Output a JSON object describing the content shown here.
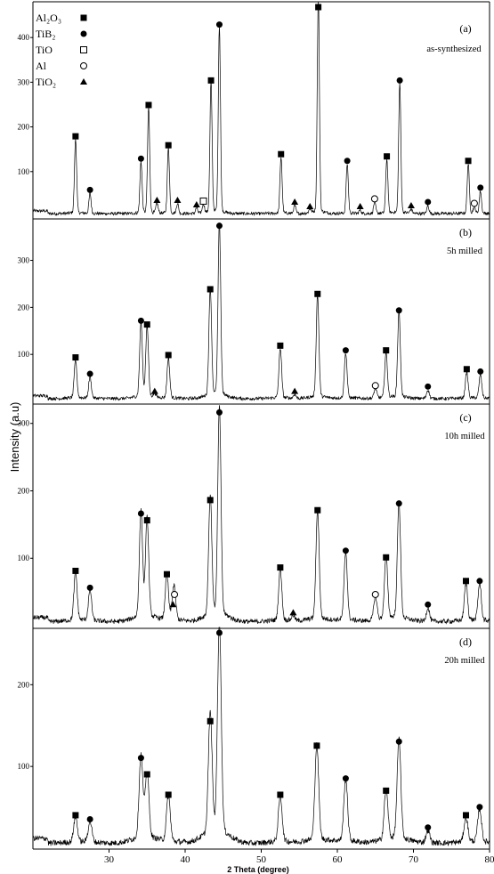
{
  "chart_data": {
    "type": "line",
    "xlabel": "2 Theta (degree)",
    "ylabel": "Intensity (a.u)",
    "x_ticks": [
      30,
      40,
      50,
      60,
      70,
      80
    ],
    "xlim": [
      20,
      80
    ],
    "grid": false,
    "legend_position": "top-left",
    "legend": [
      {
        "label": "Al₂O₃",
        "marker": "filled-square"
      },
      {
        "label": "TiB₂",
        "marker": "filled-circle"
      },
      {
        "label": "TiO",
        "marker": "open-square"
      },
      {
        "label": "Al",
        "marker": "open-circle"
      },
      {
        "label": "TiO₂",
        "marker": "filled-triangle"
      }
    ],
    "panels": [
      {
        "id": "a",
        "tag": "(a)",
        "label": "as-synthesized",
        "y_ticks": [
          100,
          200,
          300,
          400
        ],
        "ylim": [
          0,
          480
        ],
        "peaks": [
          {
            "x": 25.6,
            "y": 165,
            "phase": "Al2O3"
          },
          {
            "x": 27.5,
            "y": 45,
            "phase": "TiB2"
          },
          {
            "x": 34.2,
            "y": 115,
            "phase": "TiB2"
          },
          {
            "x": 35.2,
            "y": 235,
            "phase": "Al2O3"
          },
          {
            "x": 36.3,
            "y": 22,
            "phase": "TiO2"
          },
          {
            "x": 37.8,
            "y": 145,
            "phase": "Al2O3"
          },
          {
            "x": 39.0,
            "y": 22,
            "phase": "TiO2"
          },
          {
            "x": 41.5,
            "y": 12,
            "phase": "TiO2"
          },
          {
            "x": 42.4,
            "y": 20,
            "phase": "TiO"
          },
          {
            "x": 43.4,
            "y": 290,
            "phase": "Al2O3"
          },
          {
            "x": 44.5,
            "y": 415,
            "phase": "TiB2"
          },
          {
            "x": 52.6,
            "y": 125,
            "phase": "Al2O3"
          },
          {
            "x": 54.4,
            "y": 18,
            "phase": "TiO2"
          },
          {
            "x": 56.4,
            "y": 8,
            "phase": "TiO2"
          },
          {
            "x": 57.5,
            "y": 480,
            "phase": "Al2O3"
          },
          {
            "x": 61.3,
            "y": 110,
            "phase": "TiB2"
          },
          {
            "x": 63.0,
            "y": 8,
            "phase": "TiO2"
          },
          {
            "x": 64.9,
            "y": 25,
            "phase": "Al"
          },
          {
            "x": 66.5,
            "y": 120,
            "phase": "Al2O3"
          },
          {
            "x": 68.2,
            "y": 290,
            "phase": "TiB2"
          },
          {
            "x": 69.7,
            "y": 10,
            "phase": "TiO2"
          },
          {
            "x": 71.9,
            "y": 18,
            "phase": "TiB2"
          },
          {
            "x": 77.2,
            "y": 110,
            "phase": "Al2O3"
          },
          {
            "x": 78.0,
            "y": 15,
            "phase": "Al"
          },
          {
            "x": 78.8,
            "y": 50,
            "phase": "TiB2"
          }
        ]
      },
      {
        "id": "b",
        "tag": "(b)",
        "label": "5h milled",
        "y_ticks": [
          100,
          200,
          300
        ],
        "ylim": [
          0,
          390
        ],
        "peaks": [
          {
            "x": 25.6,
            "y": 80,
            "phase": "Al2O3"
          },
          {
            "x": 27.5,
            "y": 45,
            "phase": "TiB2"
          },
          {
            "x": 34.2,
            "y": 158,
            "phase": "TiB2"
          },
          {
            "x": 35.0,
            "y": 150,
            "phase": "Al2O3"
          },
          {
            "x": 36.0,
            "y": 8,
            "phase": "TiO2"
          },
          {
            "x": 37.8,
            "y": 85,
            "phase": "Al2O3"
          },
          {
            "x": 43.3,
            "y": 225,
            "phase": "Al2O3"
          },
          {
            "x": 44.5,
            "y": 360,
            "phase": "TiB2"
          },
          {
            "x": 52.5,
            "y": 105,
            "phase": "Al2O3"
          },
          {
            "x": 54.4,
            "y": 8,
            "phase": "TiO2"
          },
          {
            "x": 57.4,
            "y": 215,
            "phase": "Al2O3"
          },
          {
            "x": 61.1,
            "y": 95,
            "phase": "TiB2"
          },
          {
            "x": 65.0,
            "y": 20,
            "phase": "Al"
          },
          {
            "x": 66.4,
            "y": 95,
            "phase": "Al2O3"
          },
          {
            "x": 68.1,
            "y": 180,
            "phase": "TiB2"
          },
          {
            "x": 71.9,
            "y": 18,
            "phase": "TiB2"
          },
          {
            "x": 77.0,
            "y": 55,
            "phase": "Al2O3"
          },
          {
            "x": 78.8,
            "y": 50,
            "phase": "TiB2"
          }
        ]
      },
      {
        "id": "c",
        "tag": "(c)",
        "label": "10h milled",
        "y_ticks": [
          100,
          200,
          300
        ],
        "ylim": [
          0,
          330
        ],
        "peaks": [
          {
            "x": 25.6,
            "y": 70,
            "phase": "Al2O3"
          },
          {
            "x": 27.5,
            "y": 45,
            "phase": "TiB2"
          },
          {
            "x": 34.2,
            "y": 155,
            "phase": "TiB2"
          },
          {
            "x": 35.0,
            "y": 145,
            "phase": "Al2O3"
          },
          {
            "x": 37.6,
            "y": 65,
            "phase": "Al2O3"
          },
          {
            "x": 38.4,
            "y": 20,
            "phase": "TiO2"
          },
          {
            "x": 38.6,
            "y": 35,
            "phase": "Al"
          },
          {
            "x": 43.3,
            "y": 175,
            "phase": "Al2O3"
          },
          {
            "x": 44.5,
            "y": 305,
            "phase": "TiB2"
          },
          {
            "x": 52.5,
            "y": 75,
            "phase": "Al2O3"
          },
          {
            "x": 54.2,
            "y": 8,
            "phase": "TiO2"
          },
          {
            "x": 57.4,
            "y": 160,
            "phase": "Al2O3"
          },
          {
            "x": 61.1,
            "y": 100,
            "phase": "TiB2"
          },
          {
            "x": 65.0,
            "y": 35,
            "phase": "Al"
          },
          {
            "x": 66.4,
            "y": 90,
            "phase": "Al2O3"
          },
          {
            "x": 68.1,
            "y": 170,
            "phase": "TiB2"
          },
          {
            "x": 71.9,
            "y": 20,
            "phase": "TiB2"
          },
          {
            "x": 76.9,
            "y": 55,
            "phase": "Al2O3"
          },
          {
            "x": 78.7,
            "y": 55,
            "phase": "TiB2"
          }
        ]
      },
      {
        "id": "d",
        "tag": "(d)",
        "label": "20h milled",
        "y_ticks": [
          100,
          200
        ],
        "ylim": [
          0,
          270
        ],
        "peaks": [
          {
            "x": 25.6,
            "y": 30,
            "phase": "Al2O3"
          },
          {
            "x": 27.5,
            "y": 25,
            "phase": "TiB2"
          },
          {
            "x": 34.2,
            "y": 100,
            "phase": "TiB2"
          },
          {
            "x": 35.0,
            "y": 80,
            "phase": "Al2O3"
          },
          {
            "x": 37.8,
            "y": 55,
            "phase": "Al2O3"
          },
          {
            "x": 43.3,
            "y": 145,
            "phase": "Al2O3"
          },
          {
            "x": 44.5,
            "y": 255,
            "phase": "TiB2"
          },
          {
            "x": 52.5,
            "y": 55,
            "phase": "Al2O3"
          },
          {
            "x": 57.3,
            "y": 115,
            "phase": "Al2O3"
          },
          {
            "x": 61.1,
            "y": 75,
            "phase": "TiB2"
          },
          {
            "x": 66.4,
            "y": 60,
            "phase": "Al2O3"
          },
          {
            "x": 68.1,
            "y": 120,
            "phase": "TiB2"
          },
          {
            "x": 71.9,
            "y": 15,
            "phase": "TiB2"
          },
          {
            "x": 76.9,
            "y": 30,
            "phase": "Al2O3"
          },
          {
            "x": 78.7,
            "y": 40,
            "phase": "TiB2"
          }
        ]
      }
    ]
  }
}
